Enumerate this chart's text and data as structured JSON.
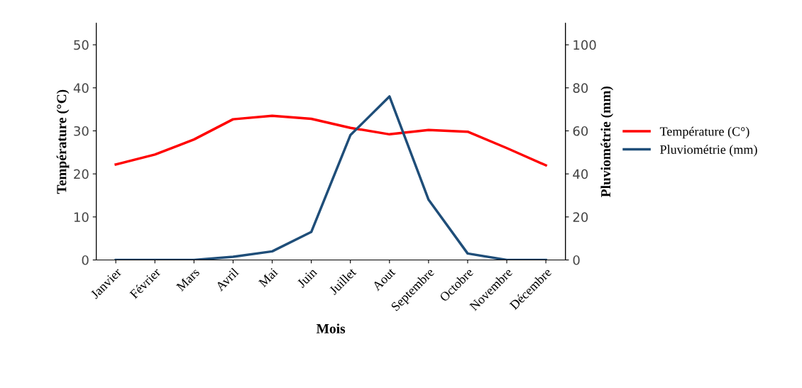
{
  "chart_data": {
    "type": "line",
    "xlabel": "Mois",
    "ylabel": "Température (°C)",
    "y2label": "Pluviométrie (mm)",
    "categories": [
      "Janvier",
      "Février",
      "Mars",
      "Avril",
      "Mai",
      "Juin",
      "Juillet",
      "Aout",
      "Septembre",
      "Octobre",
      "Novembre",
      "Décembre"
    ],
    "series": [
      {
        "name": "Température (C°)",
        "color": "#ff0000",
        "values": [
          22.2,
          24.5,
          28.0,
          32.7,
          33.5,
          32.8,
          30.7,
          29.2,
          30.2,
          29.8,
          26.0,
          22.0
        ]
      },
      {
        "name": "Pluviométrie (mm)",
        "color": "#1f4e79",
        "axis": "y2",
        "values": [
          0,
          0,
          0,
          1.5,
          4,
          13,
          58,
          76,
          28,
          3,
          0,
          0
        ]
      }
    ],
    "ylim": [
      0,
      55
    ],
    "yticks": [
      0,
      10,
      20,
      30,
      40,
      50
    ],
    "y2lim": [
      0,
      110
    ],
    "y2ticks": [
      0,
      20,
      40,
      60,
      80,
      100
    ],
    "grid": false,
    "legend": "right",
    "marker": "none",
    "line_style": "solid"
  }
}
